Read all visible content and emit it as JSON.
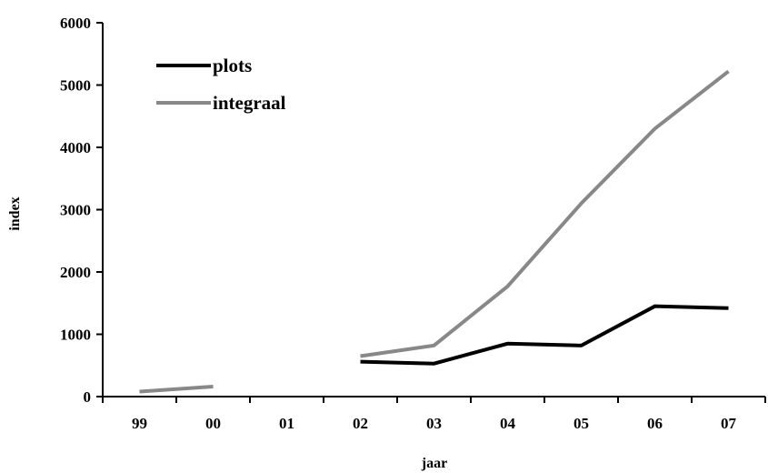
{
  "chart_data": {
    "type": "line",
    "title": "",
    "xlabel": "jaar",
    "ylabel": "index",
    "categories": [
      "99",
      "00",
      "01",
      "02",
      "03",
      "04",
      "05",
      "06",
      "07"
    ],
    "ylim": [
      0,
      6000
    ],
    "yticks": [
      0,
      1000,
      2000,
      3000,
      4000,
      5000,
      6000
    ],
    "grid": false,
    "legend_position": "top-left",
    "series": [
      {
        "name": "plots",
        "color": "#000000",
        "values": [
          null,
          null,
          null,
          560,
          530,
          850,
          820,
          1450,
          1420
        ]
      },
      {
        "name": "integraal",
        "color": "#888888",
        "values": [
          80,
          160,
          null,
          650,
          820,
          1770,
          3100,
          4300,
          5220
        ]
      }
    ]
  }
}
